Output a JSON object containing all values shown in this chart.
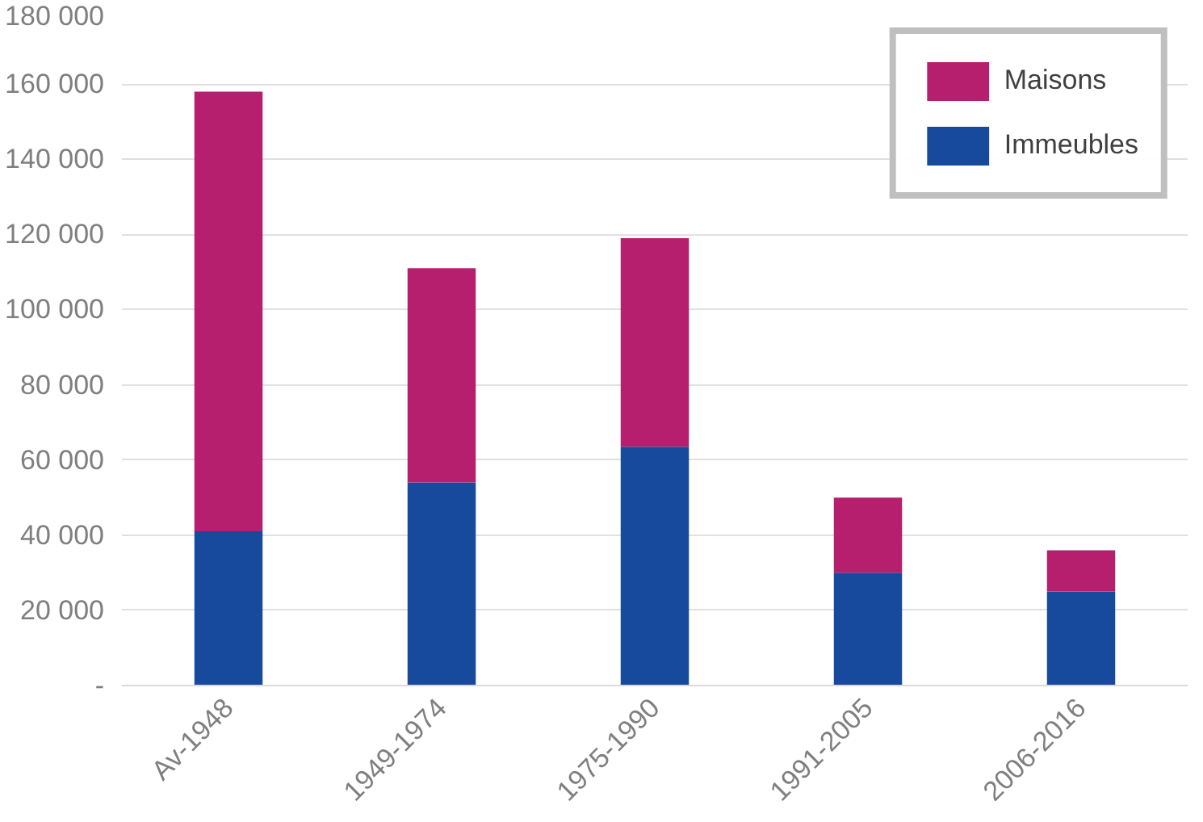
{
  "chart_data": {
    "type": "bar",
    "stacked": true,
    "categories": [
      "Av-1948",
      "1949-1974",
      "1975-1990",
      "1991-2005",
      "2006-2016"
    ],
    "series": [
      {
        "name": "Immeubles",
        "color": "#174a9c",
        "values": [
          41000,
          54000,
          63500,
          30000,
          25000
        ]
      },
      {
        "name": "Maisons",
        "color": "#b51f6e",
        "values": [
          117000,
          57000,
          55500,
          20000,
          11000
        ]
      }
    ],
    "ylim": [
      0,
      180000
    ],
    "yticks": [
      {
        "value": 0,
        "label": "-"
      },
      {
        "value": 20000,
        "label": "20 000"
      },
      {
        "value": 40000,
        "label": "40 000"
      },
      {
        "value": 60000,
        "label": "60 000"
      },
      {
        "value": 80000,
        "label": "80 000"
      },
      {
        "value": 100000,
        "label": "100 000"
      },
      {
        "value": 120000,
        "label": "120 000"
      },
      {
        "value": 140000,
        "label": "140 000"
      },
      {
        "value": 160000,
        "label": "160 000"
      },
      {
        "value": 180000,
        "label": "180 000"
      }
    ],
    "grid": "y",
    "legend": "top right"
  }
}
